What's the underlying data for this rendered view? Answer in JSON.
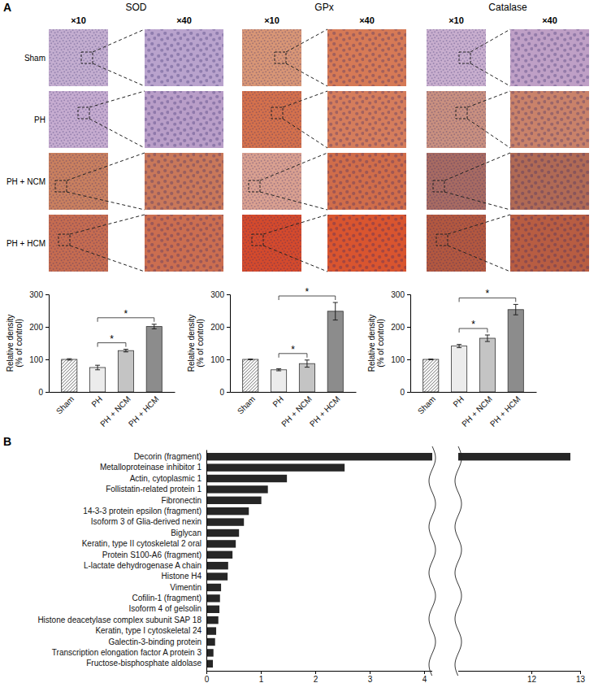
{
  "panel_labels": [
    "A",
    "B"
  ],
  "micrographs": {
    "magnifications": [
      "×10",
      "×40"
    ],
    "rows": [
      "Sham",
      "PH",
      "PH + NCM",
      "PH + HCM"
    ]
  },
  "chart_data": [
    {
      "type": "bar",
      "title": "SOD",
      "y_label": "Relative density (% of control)",
      "categories": [
        "Sham",
        "PH",
        "PH + NCM",
        "PH + HCM"
      ],
      "values": [
        100,
        75,
        127,
        201
      ],
      "errors": [
        2,
        7,
        4,
        7
      ],
      "colors": [
        "#8a8a8a",
        "#ececec",
        "#c4c4c4",
        "#8c8c8c"
      ],
      "ylim": [
        0,
        300
      ],
      "yticks": [
        0,
        100,
        200,
        300
      ],
      "annotations": [
        {
          "text": "*",
          "from": "PH",
          "to": "PH + NCM"
        },
        {
          "text": "*",
          "from": "PH",
          "to": "PH + HCM"
        }
      ]
    },
    {
      "type": "bar",
      "title": "GPx",
      "y_label": "Relative density (% of control)",
      "categories": [
        "Sham",
        "PH",
        "PH + NCM",
        "PH + HCM"
      ],
      "values": [
        100,
        68,
        87,
        248
      ],
      "errors": [
        1,
        3,
        11,
        27
      ],
      "colors": [
        "#8a8a8a",
        "#ececec",
        "#c4c4c4",
        "#8c8c8c"
      ],
      "ylim": [
        0,
        300
      ],
      "yticks": [
        0,
        100,
        200,
        300
      ],
      "annotations": [
        {
          "text": "*",
          "from": "PH",
          "to": "PH + NCM"
        },
        {
          "text": "*",
          "from": "PH",
          "to": "PH + HCM"
        }
      ]
    },
    {
      "type": "bar",
      "title": "Catalase",
      "y_label": "Relative density (% of control)",
      "categories": [
        "Sham",
        "PH",
        "PH + NCM",
        "PH + HCM"
      ],
      "values": [
        100,
        141,
        165,
        253
      ],
      "errors": [
        1,
        5,
        10,
        16
      ],
      "colors": [
        "#8a8a8a",
        "#ececec",
        "#c4c4c4",
        "#8c8c8c"
      ],
      "ylim": [
        0,
        300
      ],
      "yticks": [
        0,
        100,
        200,
        300
      ],
      "annotations": [
        {
          "text": "*",
          "from": "PH",
          "to": "PH + NCM"
        },
        {
          "text": "*",
          "from": "PH",
          "to": "PH + HCM"
        }
      ]
    },
    {
      "type": "bar",
      "orientation": "horizontal",
      "categories": [
        "Decorin (fragment)",
        "Metalloproteinase inhibitor 1",
        "Actin, cytoplasmic 1",
        "Follistatin-related protein 1",
        "Fibronectin",
        "14-3-3 protein epsilon (fragment)",
        "Isoform 3 of Glia-derived nexin",
        "Biglycan",
        "Keratin, type II cytoskeletal 2 oral",
        "Protein S100-A6 (fragment)",
        "L-lactate dehydrogenase A chain",
        "Histone H4",
        "Vimentin",
        "Cofilin-1 (fragment)",
        "Isoform 4 of gelsolin",
        "Histone deacetylase complex subunit SAP 18",
        "Keratin, type I cytoskeletal 24",
        "Galectin-3-binding protein",
        "Transcription elongation factor A protein 3",
        "Fructose-bisphosphate aldolase"
      ],
      "values": [
        12.8,
        2.54,
        1.48,
        1.13,
        1.01,
        0.78,
        0.69,
        0.6,
        0.54,
        0.48,
        0.4,
        0.39,
        0.27,
        0.25,
        0.24,
        0.22,
        0.18,
        0.16,
        0.13,
        0.12
      ],
      "color": "#262626",
      "xlim": [
        0,
        13
      ],
      "x_break": [
        4.15,
        10.5
      ],
      "xticks": [
        0,
        1,
        2,
        3,
        4,
        12,
        13
      ]
    }
  ]
}
